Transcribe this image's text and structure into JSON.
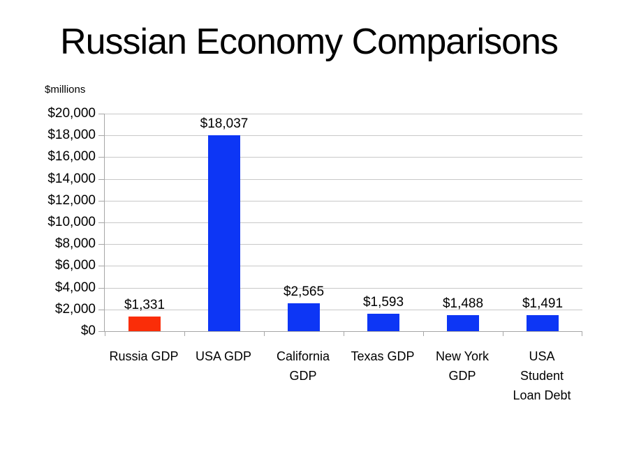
{
  "title": "Russian Economy Comparisons",
  "axis_unit_label": "$millions",
  "chart_data": {
    "type": "bar",
    "title": "Russian Economy Comparisons",
    "categories": [
      "Russia GDP",
      "USA GDP",
      "California\nGDP",
      "Texas GDP",
      "New York\nGDP",
      "USA\nStudent\nLoan Debt"
    ],
    "values": [
      1331,
      18037,
      2565,
      1593,
      1488,
      1491
    ],
    "value_labels": [
      "$1,331",
      "$18,037",
      "$2,565",
      "$1,593",
      "$1,488",
      "$1,491"
    ],
    "bar_colors": [
      "#FA2D08",
      "#0D36F5",
      "#0D36F5",
      "#0D36F5",
      "#0D36F5",
      "#0D36F5"
    ],
    "xlabel": "",
    "ylabel": "$millions",
    "ylim": [
      0,
      20000
    ],
    "ytick_interval": 2000,
    "ytick_labels": [
      "$0",
      "$2,000",
      "$4,000",
      "$6,000",
      "$8,000",
      "$10,000",
      "$12,000",
      "$14,000",
      "$16,000",
      "$18,000",
      "$20,000"
    ],
    "grid": true,
    "legend": false
  },
  "colors": {
    "bar_blue": "#0D36F5",
    "bar_red": "#FA2D08",
    "gridline": "#C8C8C8",
    "axis": "#A6A6A6",
    "background": "#FFFFFF",
    "text": "#000000"
  }
}
